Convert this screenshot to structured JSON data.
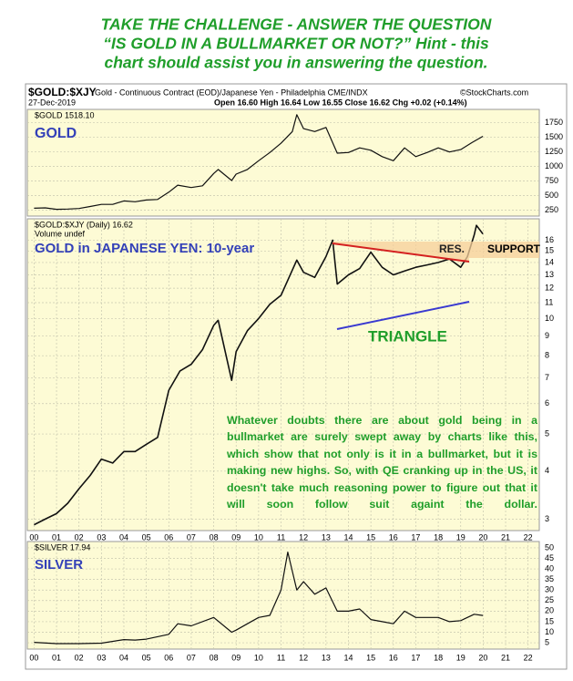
{
  "header": {
    "lines": [
      "TAKE THE CHALLENGE - ANSWER THE QUESTION",
      "“IS GOLD IN A BULLMARKET OR NOT?” Hint - this",
      "chart should assist you in answering the question."
    ]
  },
  "chart_header": {
    "symbol": "$GOLD:$XJY",
    "description": "Gold - Continuous Contract (EOD)/Japanese Yen - Philadelphia CME/INDX",
    "source": "©StockCharts.com",
    "date": "27-Dec-2019",
    "ohlc": "Open 16.60 High 16.64 Low 16.55 Close 16.62 Chg +0.02 (+0.14%)"
  },
  "chart_data": [
    {
      "type": "line",
      "panel_title": "GOLD",
      "log": false,
      "grid": true,
      "xlim": [
        -0.3,
        22.5
      ],
      "ylim": [
        150,
        1980
      ],
      "yticks": [
        250,
        500,
        750,
        1000,
        1250,
        1500,
        1750
      ],
      "x": [
        0,
        0.5,
        1,
        1.5,
        2,
        2.5,
        3,
        3.5,
        4,
        4.5,
        5,
        5.5,
        6,
        6.4,
        7,
        7.5,
        8,
        8.2,
        8.8,
        9,
        9.5,
        10,
        10.5,
        11,
        11.5,
        11.7,
        12,
        12.5,
        13,
        13.5,
        14,
        14.5,
        15,
        15.5,
        16,
        16.5,
        17,
        17.5,
        18,
        18.5,
        19,
        19.5,
        19.99
      ],
      "series": [
        {
          "name": "$GOLD 1518.10",
          "color": "#111111",
          "values": [
            285,
            290,
            265,
            270,
            280,
            315,
            350,
            350,
            410,
            395,
            425,
            435,
            560,
            680,
            640,
            670,
            880,
            950,
            760,
            870,
            950,
            1100,
            1240,
            1400,
            1600,
            1890,
            1650,
            1600,
            1670,
            1230,
            1240,
            1320,
            1280,
            1170,
            1100,
            1320,
            1170,
            1240,
            1320,
            1250,
            1290,
            1410,
            1518
          ]
        }
      ]
    },
    {
      "type": "line",
      "panel_title": "GOLD in JAPANESE YEN: 10-year",
      "volume_label": "Volume undef",
      "log": true,
      "grid": true,
      "annotations": [
        "RES.",
        "SUPPORT",
        "TRIANGLE",
        "Whatever doubts there are about gold being in a bullmarket are surely swept away by charts like this, which show that not only is it in a bullmarket, but it is making new highs. So, with QE cranking up in the US, it doesn't take much reasoning power to figure out that it will soon follow suit againt the dollar."
      ],
      "xlim": [
        -0.3,
        22.5
      ],
      "ylim": [
        2.8,
        18.2
      ],
      "yticks": [
        3,
        4,
        5,
        6,
        7,
        8,
        9,
        10,
        11,
        12,
        13,
        14,
        15,
        16
      ],
      "xticks": [
        {
          "value": 0,
          "label": "00"
        },
        {
          "value": 1,
          "label": "01"
        },
        {
          "value": 2,
          "label": "02"
        },
        {
          "value": 3,
          "label": "03"
        },
        {
          "value": 4,
          "label": "04"
        },
        {
          "value": 5,
          "label": "05"
        },
        {
          "value": 6,
          "label": "06"
        },
        {
          "value": 7,
          "label": "07"
        },
        {
          "value": 8,
          "label": "08"
        },
        {
          "value": 9,
          "label": "09"
        },
        {
          "value": 10,
          "label": "10"
        },
        {
          "value": 11,
          "label": "11"
        },
        {
          "value": 12,
          "label": "12"
        },
        {
          "value": 13,
          "label": "13"
        },
        {
          "value": 14,
          "label": "14"
        },
        {
          "value": 15,
          "label": "15"
        },
        {
          "value": 16,
          "label": "16"
        },
        {
          "value": 17,
          "label": "17"
        },
        {
          "value": 18,
          "label": "18"
        },
        {
          "value": 19,
          "label": "19"
        },
        {
          "value": 20,
          "label": "20"
        },
        {
          "value": 21,
          "label": "21"
        },
        {
          "value": 22,
          "label": "22"
        }
      ],
      "x": [
        0,
        0.5,
        1,
        1.5,
        2,
        2.5,
        3,
        3.5,
        4,
        4.5,
        5,
        5.5,
        6,
        6.5,
        7,
        7.5,
        8,
        8.2,
        8.8,
        9,
        9.5,
        10,
        10.5,
        11,
        11.7,
        12,
        12.5,
        13,
        13.3,
        13.5,
        14,
        14.5,
        15,
        15.5,
        16,
        16.5,
        17,
        17.5,
        18,
        18.5,
        19,
        19.3,
        19.6,
        19.7,
        19.99
      ],
      "series": [
        {
          "name": "$GOLD:$XJY (Daily) 16.62",
          "color": "#111111",
          "values": [
            2.9,
            3.0,
            3.1,
            3.3,
            3.6,
            3.9,
            4.3,
            4.2,
            4.5,
            4.5,
            4.7,
            4.9,
            6.5,
            7.3,
            7.6,
            8.3,
            9.6,
            9.9,
            6.9,
            8.2,
            9.3,
            10.0,
            10.9,
            11.5,
            14.2,
            13.2,
            12.8,
            14.5,
            16.0,
            12.3,
            13.0,
            13.5,
            14.9,
            13.6,
            13.0,
            13.3,
            13.6,
            13.8,
            14.0,
            14.3,
            13.6,
            14.5,
            16.5,
            17.5,
            16.62
          ]
        }
      ]
    },
    {
      "type": "line",
      "panel_title": "SILVER",
      "log": false,
      "grid": true,
      "xlim": [
        -0.3,
        22.5
      ],
      "ylim": [
        2,
        53
      ],
      "yticks": [
        5,
        10,
        15,
        20,
        25,
        30,
        35,
        40,
        45,
        50
      ],
      "xticks": [
        {
          "value": 0,
          "label": "00"
        },
        {
          "value": 1,
          "label": "01"
        },
        {
          "value": 2,
          "label": "02"
        },
        {
          "value": 3,
          "label": "03"
        },
        {
          "value": 4,
          "label": "04"
        },
        {
          "value": 5,
          "label": "05"
        },
        {
          "value": 6,
          "label": "06"
        },
        {
          "value": 7,
          "label": "07"
        },
        {
          "value": 8,
          "label": "08"
        },
        {
          "value": 9,
          "label": "09"
        },
        {
          "value": 10,
          "label": "10"
        },
        {
          "value": 11,
          "label": "11"
        },
        {
          "value": 12,
          "label": "12"
        },
        {
          "value": 13,
          "label": "13"
        },
        {
          "value": 14,
          "label": "14"
        },
        {
          "value": 15,
          "label": "15"
        },
        {
          "value": 16,
          "label": "16"
        },
        {
          "value": 17,
          "label": "17"
        },
        {
          "value": 18,
          "label": "18"
        },
        {
          "value": 19,
          "label": "19"
        },
        {
          "value": 20,
          "label": "20"
        },
        {
          "value": 21,
          "label": "21"
        },
        {
          "value": 22,
          "label": "22"
        }
      ],
      "x": [
        0,
        1,
        2,
        3,
        4,
        4.5,
        5,
        6,
        6.4,
        7,
        8,
        8.8,
        9,
        9.5,
        10,
        10.5,
        11,
        11.3,
        11.7,
        12,
        12.5,
        13,
        13.5,
        14,
        14.5,
        15,
        15.5,
        16,
        16.5,
        17,
        17.5,
        18,
        18.5,
        19,
        19.6,
        19.99
      ],
      "series": [
        {
          "name": "$SILVER 17.94",
          "color": "#111111",
          "values": [
            5.2,
            4.6,
            4.6,
            4.8,
            6.5,
            6.3,
            6.7,
            9,
            14,
            13,
            17,
            10,
            11,
            14,
            17,
            18,
            30,
            48,
            30,
            34,
            28,
            31,
            20,
            20,
            21,
            16,
            15,
            14,
            20,
            17,
            17,
            17,
            15,
            15.5,
            18.5,
            17.94
          ]
        }
      ]
    }
  ]
}
